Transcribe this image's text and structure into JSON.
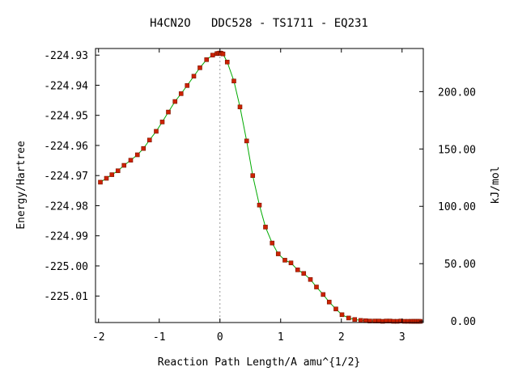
{
  "chart_data": {
    "type": "line",
    "title": "H4CN2O   DDC528 - TS1711 - EQ231",
    "xlabel": "Reaction Path Length/A amu^{1/2}",
    "ylabel_left": "Energy/Hartree",
    "ylabel_right": "kJ/mol",
    "xlim": [
      -2.05,
      3.35
    ],
    "ylim": [
      -225.0188,
      -224.9278
    ],
    "x_ticks": [
      {
        "value": -2,
        "label": "-2"
      },
      {
        "value": -1,
        "label": "-1"
      },
      {
        "value": 0,
        "label": "0"
      },
      {
        "value": 1,
        "label": "1"
      },
      {
        "value": 2,
        "label": "2"
      },
      {
        "value": 3,
        "label": "3"
      }
    ],
    "y_ticks_left": [
      {
        "value": -224.93,
        "label": "-224.93"
      },
      {
        "value": -224.94,
        "label": "-224.94"
      },
      {
        "value": -224.95,
        "label": "-224.95"
      },
      {
        "value": -224.96,
        "label": "-224.96"
      },
      {
        "value": -224.97,
        "label": "-224.97"
      },
      {
        "value": -224.98,
        "label": "-224.98"
      },
      {
        "value": -224.99,
        "label": "-224.99"
      },
      {
        "value": -225.0,
        "label": "-225.00"
      },
      {
        "value": -225.01,
        "label": "-225.01"
      }
    ],
    "y_ticks_right": [
      {
        "value": 0,
        "label": "0.00"
      },
      {
        "value": 50,
        "label": "50.00"
      },
      {
        "value": 100,
        "label": "100.00"
      },
      {
        "value": 150,
        "label": "150.00"
      },
      {
        "value": 200,
        "label": "200.00"
      }
    ],
    "right_axis_zero_hartree": -225.0183,
    "hartree_to_kjmol": 2625.5,
    "ts_marker_x": 0,
    "colors": {
      "line": "#00aa00",
      "marker": "#cc2200",
      "marker_edge": "#7a1400",
      "ts_line": "#999999",
      "frame": "#000000"
    },
    "series": [
      {
        "x": [
          -1.97,
          -1.87,
          -1.78,
          -1.68,
          -1.58,
          -1.47,
          -1.36,
          -1.26,
          -1.16,
          -1.05,
          -0.95,
          -0.85,
          -0.74,
          -0.64,
          -0.54,
          -0.43,
          -0.33,
          -0.22,
          -0.12,
          -0.05,
          -0.02,
          0.0,
          0.02,
          0.05,
          0.12,
          0.23,
          0.33,
          0.44,
          0.54,
          0.65,
          0.75,
          0.86,
          0.96,
          1.07,
          1.17,
          1.28,
          1.38,
          1.49,
          1.59,
          1.7,
          1.8,
          1.91,
          2.01,
          2.12,
          2.22,
          2.32,
          2.4,
          2.47,
          2.55,
          2.62,
          2.68,
          2.74,
          2.8,
          2.86,
          2.92,
          2.98,
          3.04,
          3.1,
          3.15,
          3.18,
          3.21,
          3.24,
          3.27,
          3.3
        ],
        "y": [
          -224.9722,
          -224.9709,
          -224.9697,
          -224.9684,
          -224.9666,
          -224.9649,
          -224.9631,
          -224.961,
          -224.9582,
          -224.9553,
          -224.9522,
          -224.9489,
          -224.9454,
          -224.9428,
          -224.9401,
          -224.937,
          -224.9342,
          -224.9315,
          -224.93,
          -224.9295,
          -224.9294,
          -224.9293,
          -224.9294,
          -224.9296,
          -224.9323,
          -224.9386,
          -224.9472,
          -224.9585,
          -224.97,
          -224.9798,
          -224.9871,
          -224.9924,
          -224.996,
          -224.9981,
          -224.999,
          -225.0013,
          -225.0025,
          -225.0045,
          -225.007,
          -225.0095,
          -225.012,
          -225.0143,
          -225.0162,
          -225.0173,
          -225.0178,
          -225.0181,
          -225.0182,
          -225.0183,
          -225.0183,
          -225.0183,
          -225.0184,
          -225.0183,
          -225.0183,
          -225.0184,
          -225.0184,
          -225.0183,
          -225.0184,
          -225.0184,
          -225.0184,
          -225.0184,
          -225.0184,
          -225.0184,
          -225.0184,
          -225.0184
        ]
      }
    ]
  }
}
